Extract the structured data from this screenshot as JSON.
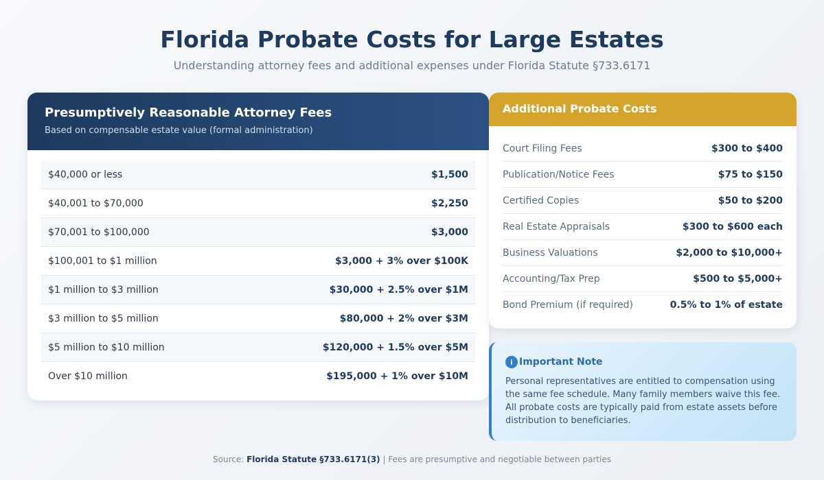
{
  "header": {
    "title": "Florida Probate Costs for Large Estates",
    "subtitle": "Understanding attorney fees and additional expenses under Florida Statute §733.6171"
  },
  "fees": {
    "title": "Presumptively Reasonable Attorney Fees",
    "subtitle": "Based on compensable estate value (formal administration)",
    "rows": [
      {
        "range": "$40,000 or less",
        "fee": "$1,500"
      },
      {
        "range": "$40,001 to $70,000",
        "fee": "$2,250"
      },
      {
        "range": "$70,001 to $100,000",
        "fee": "$3,000"
      },
      {
        "range": "$100,001 to $1 million",
        "fee": "$3,000 + 3% over $100K"
      },
      {
        "range": "$1 million to $3 million",
        "fee": "$30,000 + 2.5% over $1M"
      },
      {
        "range": "$3 million to $5 million",
        "fee": "$80,000 + 2% over $3M"
      },
      {
        "range": "$5 million to $10 million",
        "fee": "$120,000 + 1.5% over $5M"
      },
      {
        "range": "Over $10 million",
        "fee": "$195,000 + 1% over $10M"
      }
    ]
  },
  "costs": {
    "title": "Additional Probate Costs",
    "items": [
      {
        "label": "Court Filing Fees",
        "value": "$300 to $400"
      },
      {
        "label": "Publication/Notice Fees",
        "value": "$75 to $150"
      },
      {
        "label": "Certified Copies",
        "value": "$50 to $200"
      },
      {
        "label": "Real Estate Appraisals",
        "value": "$300 to $600 each"
      },
      {
        "label": "Business Valuations",
        "value": "$2,000 to $10,000+"
      },
      {
        "label": "Accounting/Tax Prep",
        "value": "$500 to $5,000+"
      },
      {
        "label": "Bond Premium (if required)",
        "value": "0.5% to 1% of estate"
      }
    ]
  },
  "note": {
    "icon": "info-icon",
    "icon_glyph": "i",
    "title": "Important Note",
    "text": "Personal representatives are entitled to compensation using the same fee schedule. Many family members waive this fee. All probate costs are typically paid from estate assets before distribution to beneficiaries."
  },
  "footer": {
    "prefix": "Source: ",
    "source": "Florida Statute §733.6171(3)",
    "suffix": " | Fees are presumptive and negotiable between parties"
  },
  "colors": {
    "navy": "#1e3a5f",
    "gold": "#d4a52a",
    "info": "#2f7fd0"
  }
}
